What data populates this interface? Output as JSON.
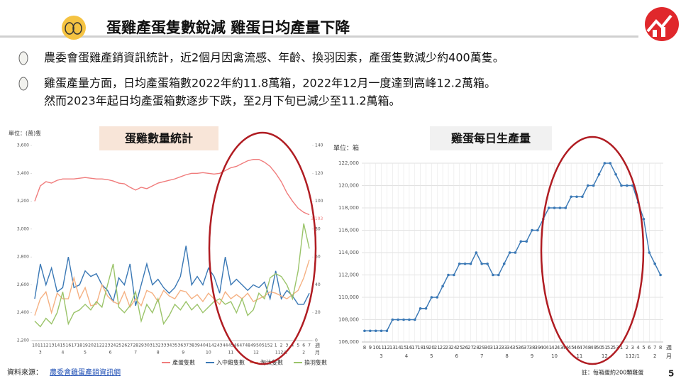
{
  "header": {
    "title": "蛋雞產蛋隻數銳減  雞蛋日均產量下降"
  },
  "bullets": [
    {
      "lines": [
        "農委會蛋雞產銷資訊統計，近2個月因禽流感、年齡、換羽因素，產蛋隻數減少約400萬隻。"
      ]
    },
    {
      "lines": [
        "雞蛋產量方面，日均產蛋箱數2022年約11.8萬箱，2022年12月一度達到高峰12.2萬箱。",
        "然而2023年起日均產蛋箱數逐步下跌，至2月下旬已減少至11.2萬箱。"
      ]
    }
  ],
  "footer": {
    "source_label": "資料來源：",
    "source_link": "農委會雞蛋產銷資訊網",
    "note": "註：每箱蛋約200顆雞蛋",
    "page_number": 5
  },
  "chart_data": [
    {
      "type": "line",
      "title": "蛋雞數量統計",
      "unit_label": "單位：(萬)隻",
      "week_label": "週",
      "month_label": "月",
      "categories": [
        "10",
        "11",
        "12",
        "13",
        "14",
        "15",
        "16",
        "17",
        "18",
        "19",
        "20",
        "21",
        "22",
        "23",
        "24",
        "25",
        "26",
        "27",
        "28",
        "29",
        "30",
        "31",
        "32",
        "33",
        "34",
        "35",
        "36",
        "37",
        "38",
        "39",
        "40",
        "41",
        "42",
        "43",
        "44",
        "45",
        "46",
        "47",
        "48",
        "49",
        "50",
        "51",
        "52",
        "1",
        "2",
        "3",
        "4",
        "5",
        "6",
        "7"
      ],
      "months": [
        "3",
        "4",
        "5",
        "6",
        "7",
        "8",
        "9",
        "10",
        "11",
        "12",
        "112/1",
        "2"
      ],
      "ylim": [
        2200,
        3600
      ],
      "yticks": [
        {
          "value": 2200,
          "label": "2,200"
        },
        {
          "value": 2400,
          "label": "2,400"
        },
        {
          "value": 2600,
          "label": "2,600"
        },
        {
          "value": 2800,
          "label": "2,800"
        },
        {
          "value": 3000,
          "label": "3,000"
        },
        {
          "value": 3200,
          "label": "3,200"
        },
        {
          "value": 3400,
          "label": "3,400"
        },
        {
          "value": 3600,
          "label": "3,600"
        }
      ],
      "y2lim": [
        0,
        140
      ],
      "y2ticks": [
        0,
        20,
        40,
        60,
        80,
        100,
        120,
        140
      ],
      "grid": false,
      "markers": false,
      "legend": "bottom",
      "series": [
        {
          "name": "產蛋隻數",
          "color": "#f07c7c",
          "axis": "y",
          "values": [
            3200,
            3310,
            3340,
            3330,
            3350,
            3360,
            3360,
            3360,
            3365,
            3370,
            3365,
            3360,
            3360,
            3355,
            3345,
            3330,
            3325,
            3300,
            3280,
            3300,
            3290,
            3310,
            3330,
            3340,
            3350,
            3360,
            3375,
            3390,
            3400,
            3400,
            3405,
            3400,
            3395,
            3400,
            3420,
            3440,
            3450,
            3470,
            3490,
            3500,
            3500,
            3480,
            3450,
            3400,
            3340,
            3260,
            3200,
            3150,
            3120,
            3103
          ],
          "value_labels": [
            null,
            null,
            null,
            null,
            null,
            null,
            null,
            null,
            null,
            null,
            null,
            null,
            null,
            null,
            null,
            null,
            null,
            null,
            null,
            null,
            null,
            null,
            null,
            null,
            null,
            null,
            null,
            null,
            null,
            null,
            null,
            null,
            null,
            null,
            null,
            null,
            null,
            null,
            null,
            null,
            null,
            null,
            null,
            null,
            null,
            null,
            null,
            null,
            null,
            "3,103"
          ]
        },
        {
          "name": "入中雞隻數",
          "color": "#3a78b5",
          "axis": "y2",
          "values": [
            30,
            55,
            40,
            52,
            35,
            38,
            60,
            38,
            40,
            50,
            46,
            48,
            40,
            36,
            28,
            45,
            40,
            55,
            25,
            40,
            55,
            40,
            44,
            38,
            34,
            38,
            46,
            68,
            40,
            46,
            40,
            52,
            46,
            34,
            60,
            40,
            44,
            40,
            36,
            40,
            38,
            42,
            30,
            50,
            30,
            36,
            32,
            26,
            26,
            34
          ]
        },
        {
          "name": "淘汰隻數",
          "color": "#f5b183",
          "axis": "y2",
          "values": [
            18,
            30,
            35,
            20,
            34,
            30,
            30,
            45,
            30,
            38,
            25,
            26,
            40,
            32,
            28,
            26,
            35,
            24,
            30,
            25,
            36,
            34,
            28,
            36,
            32,
            30,
            36,
            35,
            30,
            33,
            28,
            34,
            30,
            26,
            35,
            30,
            33,
            30,
            34,
            28,
            30,
            32,
            35,
            34,
            32,
            30,
            33,
            36,
            45,
            58
          ]
        },
        {
          "name": "換羽隻數",
          "color": "#9bc46a",
          "axis": "y2",
          "values": [
            14,
            10,
            16,
            12,
            20,
            35,
            12,
            20,
            22,
            26,
            22,
            28,
            24,
            40,
            55,
            24,
            20,
            25,
            35,
            14,
            26,
            20,
            30,
            12,
            18,
            26,
            22,
            28,
            22,
            26,
            20,
            24,
            28,
            30,
            26,
            28,
            20,
            30,
            18,
            22,
            34,
            30,
            45,
            48,
            46,
            40,
            30,
            50,
            84,
            66
          ]
        }
      ]
    },
    {
      "type": "line",
      "title": "雞蛋每日生產量",
      "unit_label": "單位：箱",
      "week_label": "週",
      "month_label": "月",
      "categories": [
        "8",
        "9",
        "10",
        "11",
        "12",
        "13",
        "14",
        "15",
        "16",
        "17",
        "18",
        "19",
        "20",
        "21",
        "22",
        "23",
        "24",
        "25",
        "26",
        "27",
        "28",
        "29",
        "30",
        "31",
        "32",
        "33",
        "34",
        "35",
        "36",
        "37",
        "38",
        "39",
        "40",
        "41",
        "42",
        "43",
        "44",
        "45",
        "46",
        "47",
        "48",
        "49",
        "50",
        "51",
        "52",
        "53",
        "1",
        "2",
        "3",
        "4",
        "5",
        "6",
        "7",
        "8"
      ],
      "months": [
        "3",
        "4",
        "5",
        "6",
        "7",
        "8",
        "9",
        "10",
        "11",
        "12",
        "112/1",
        "2"
      ],
      "ylim": [
        106000,
        122000
      ],
      "yticks": [
        {
          "value": 106000,
          "label": "106,000"
        },
        {
          "value": 108000,
          "label": "108,000"
        },
        {
          "value": 110000,
          "label": "110,000"
        },
        {
          "value": 112000,
          "label": "112,000"
        },
        {
          "value": 114000,
          "label": "114,000"
        },
        {
          "value": 116000,
          "label": "116,000"
        },
        {
          "value": 118000,
          "label": "118,000"
        },
        {
          "value": 120000,
          "label": "120,000"
        },
        {
          "value": 122000,
          "label": "122,000"
        }
      ],
      "grid": true,
      "markers": true,
      "series": [
        {
          "name": "雞蛋每日生產量",
          "color": "#3a78b5",
          "axis": "y",
          "values": [
            107000,
            107000,
            107000,
            107000,
            107000,
            108000,
            108000,
            108000,
            108000,
            108000,
            109000,
            109000,
            110000,
            110000,
            111000,
            112000,
            112000,
            113000,
            113000,
            113000,
            114000,
            113000,
            113000,
            112000,
            112000,
            113000,
            114000,
            114000,
            115000,
            115000,
            116000,
            116000,
            117000,
            118000,
            118000,
            118000,
            118000,
            119000,
            119000,
            119000,
            120000,
            120000,
            121000,
            122000,
            122000,
            121000,
            120000,
            120000,
            120000,
            118500,
            117000,
            114000,
            113000,
            112000
          ]
        }
      ]
    }
  ]
}
